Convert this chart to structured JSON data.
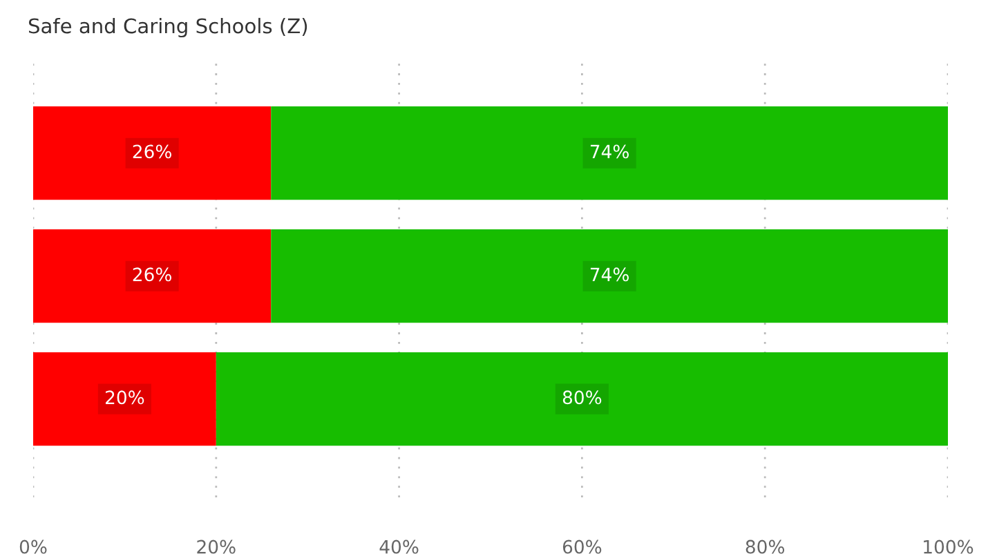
{
  "chart_data": {
    "type": "bar",
    "title": "Safe and Caring Schools (Z)",
    "orientation": "horizontal",
    "stacked": true,
    "categories": [
      null,
      null,
      null
    ],
    "series": [
      {
        "color": "#ff0000",
        "values": [
          26,
          26,
          20
        ],
        "value_labels": [
          "26%",
          "26%",
          "20%"
        ]
      },
      {
        "color": "#17bd00",
        "values": [
          74,
          74,
          80
        ],
        "value_labels": [
          "74%",
          "74%",
          "80%"
        ]
      }
    ],
    "xlim": [
      0,
      100
    ],
    "xticks": [
      {
        "value": 0,
        "label": "0%"
      },
      {
        "value": 20,
        "label": "20%"
      },
      {
        "value": 40,
        "label": "40%"
      },
      {
        "value": 60,
        "label": "60%"
      },
      {
        "value": 80,
        "label": "80%"
      },
      {
        "value": 100,
        "label": "100%"
      }
    ],
    "grid": "x",
    "legend": false
  }
}
